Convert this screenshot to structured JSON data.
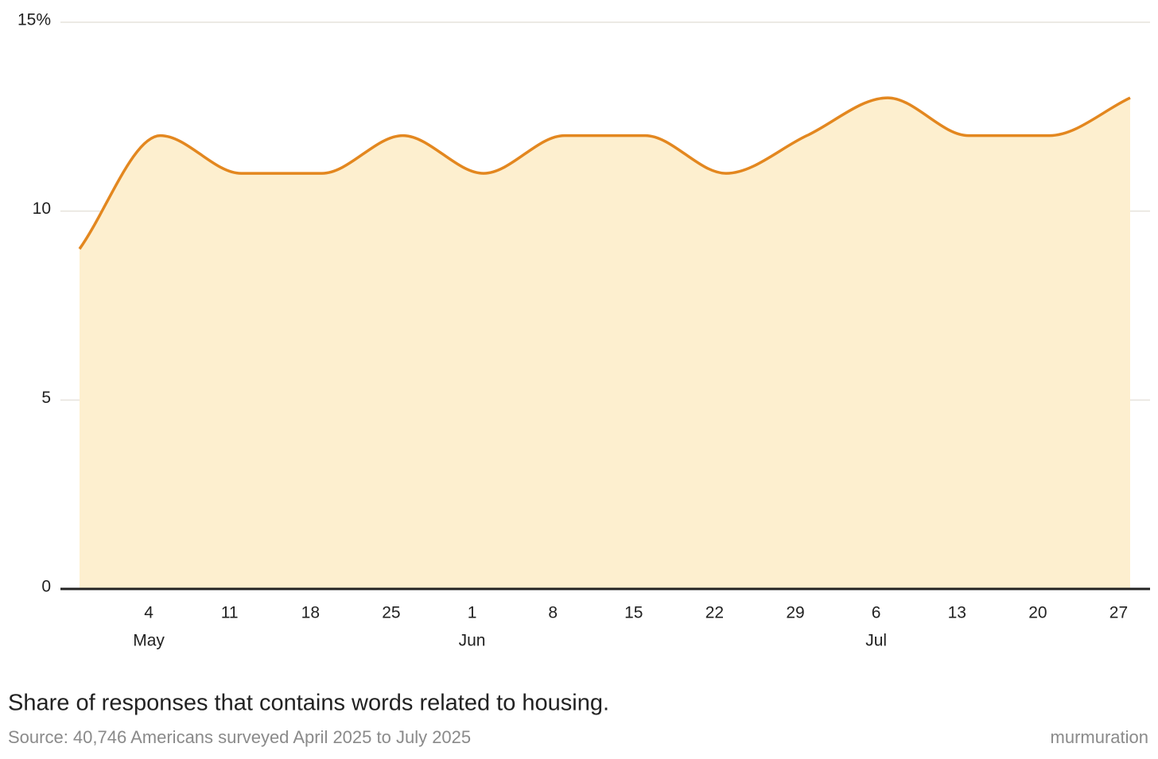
{
  "chart_data": {
    "type": "area",
    "caption": "Share of responses that contains words related to housing.",
    "source": "Source: 40,746 Americans surveyed April 2025 to July 2025",
    "credit": "murmuration",
    "x": [
      "04-28",
      "05-05",
      "05-12",
      "05-19",
      "05-26",
      "06-02",
      "06-09",
      "06-16",
      "06-23",
      "06-30",
      "07-07",
      "07-14",
      "07-21",
      "07-28"
    ],
    "values": [
      9,
      12,
      11,
      11,
      12,
      11,
      12,
      12,
      11,
      12,
      13,
      12,
      12,
      13
    ],
    "color": "#e3871f",
    "fill_color": "#fdefcf",
    "ylim": [
      0,
      15
    ],
    "yticks": [
      0,
      5,
      10,
      {
        "value": 15,
        "label": "15%"
      }
    ],
    "xticks": [
      {
        "value": "05-04",
        "label": "4"
      },
      {
        "value": "05-11",
        "label": "11"
      },
      {
        "value": "05-18",
        "label": "18"
      },
      {
        "value": "05-25",
        "label": "25"
      },
      {
        "value": "06-01",
        "label": "1"
      },
      {
        "value": "06-08",
        "label": "8"
      },
      {
        "value": "06-15",
        "label": "15"
      },
      {
        "value": "06-22",
        "label": "22"
      },
      {
        "value": "06-29",
        "label": "29"
      },
      {
        "value": "07-06",
        "label": "6"
      },
      {
        "value": "07-13",
        "label": "13"
      },
      {
        "value": "07-20",
        "label": "20"
      },
      {
        "value": "07-27",
        "label": "27"
      }
    ],
    "xtick_months": [
      {
        "value": "05-04",
        "label": "May"
      },
      {
        "value": "06-01",
        "label": "Jun"
      },
      {
        "value": "07-06",
        "label": "Jul"
      }
    ],
    "grid": true
  }
}
